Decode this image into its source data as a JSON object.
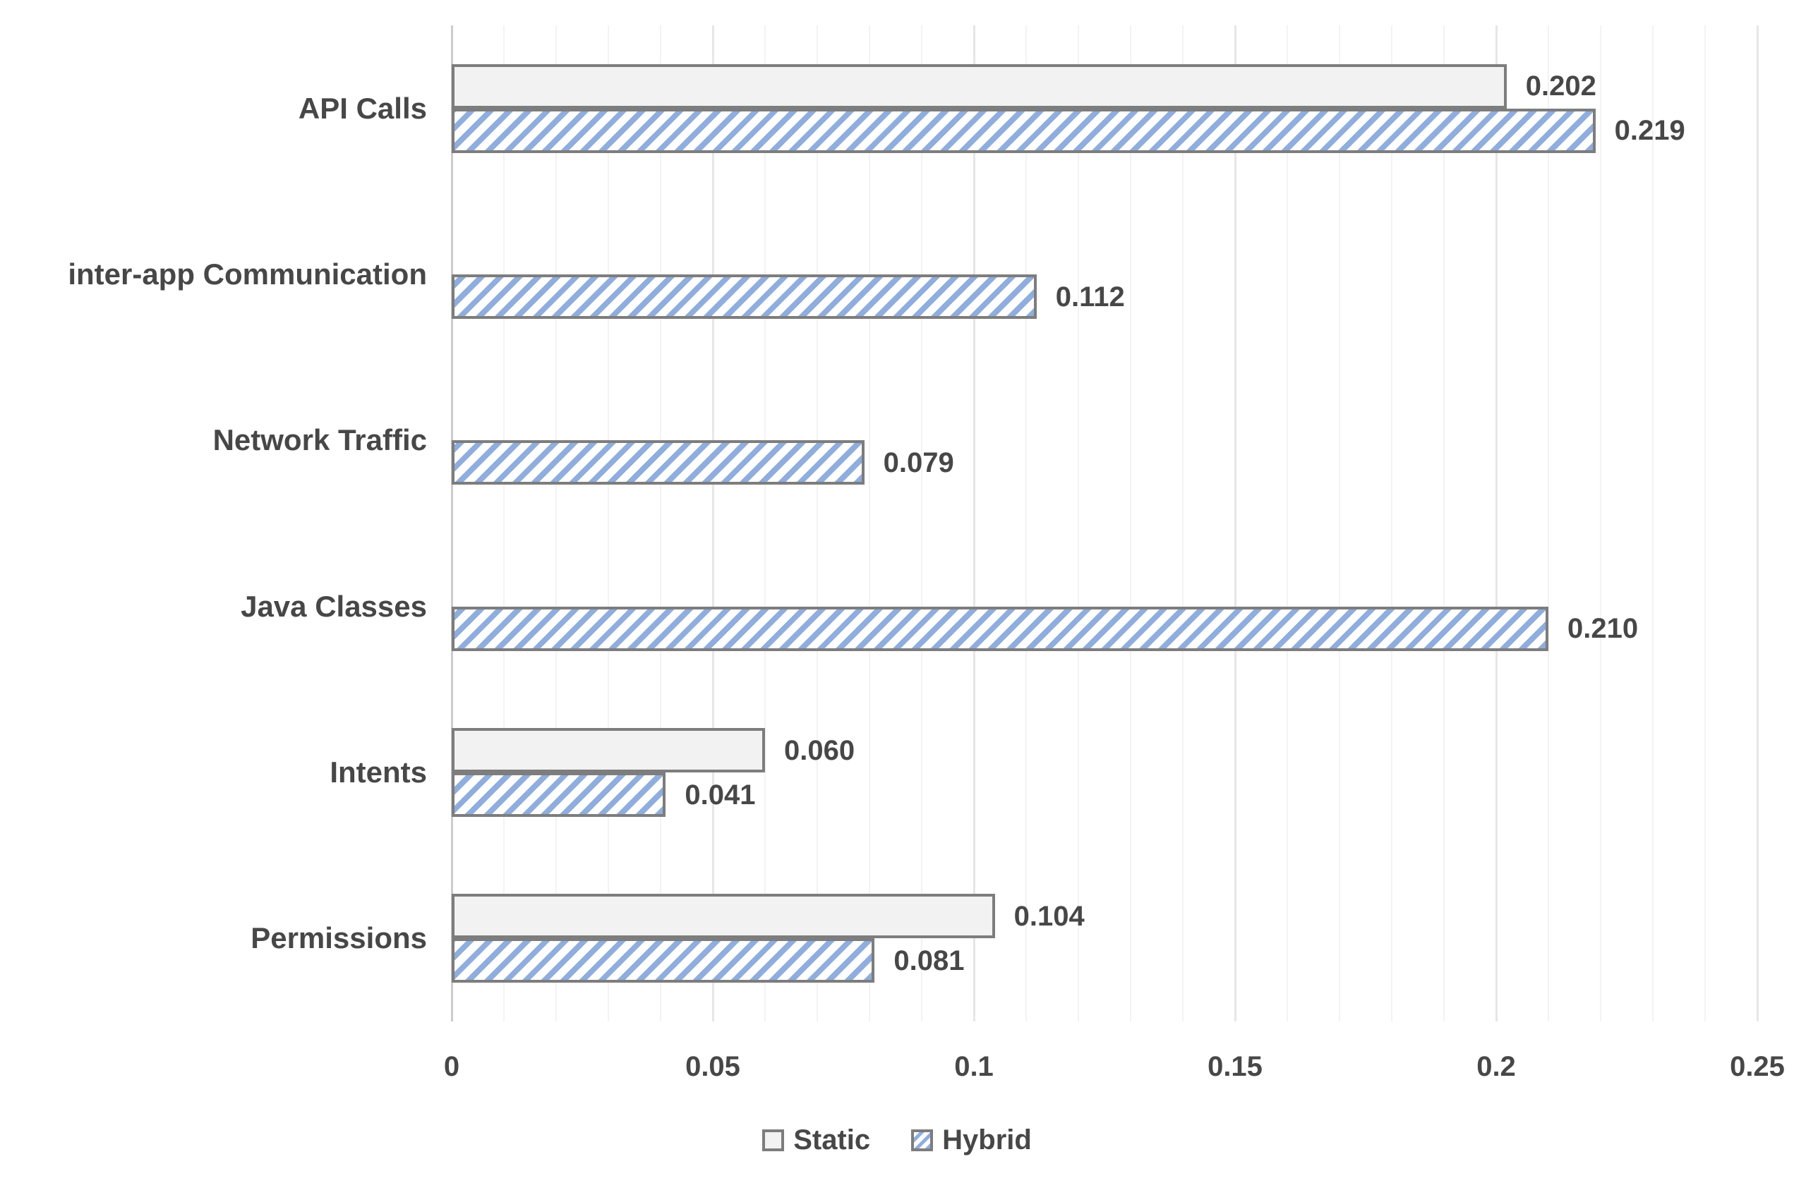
{
  "colors": {
    "static_fill": "#F2F2F2",
    "hybrid_hatch": "#8FADDD",
    "bar_border": "#7D7D7D",
    "text": "#474747",
    "gridline_minor": "#F3F3F3",
    "gridline_major": "#E6E6E6",
    "axis_line": "#CCCCCC"
  },
  "chart_data": {
    "type": "bar",
    "orientation": "horizontal",
    "title": "",
    "xlabel": "",
    "ylabel": "",
    "xlim": [
      0,
      0.25
    ],
    "x_major_unit": 0.05,
    "x_minor_unit": 0.01,
    "grid": "vertical gridlines on; minor every 0.01, major every 0.05; no bottom axis line",
    "legend_position": "bottom-center",
    "categories": [
      "API Calls",
      "inter-app Communication",
      "Network Traffic",
      "Java Classes",
      "Intents",
      "Permissions"
    ],
    "x_ticks": [
      {
        "value": 0,
        "label": "0"
      },
      {
        "value": 0.05,
        "label": "0.05"
      },
      {
        "value": 0.1,
        "label": "0.1"
      },
      {
        "value": 0.15,
        "label": "0.15"
      },
      {
        "value": 0.2,
        "label": "0.2"
      },
      {
        "value": 0.25,
        "label": "0.25"
      }
    ],
    "series": [
      {
        "name": "Static",
        "style": "solid-light-gray",
        "values": [
          0.202,
          null,
          null,
          null,
          0.06,
          0.104
        ],
        "labels": [
          "0.202",
          null,
          null,
          null,
          "0.060",
          "0.104"
        ]
      },
      {
        "name": "Hybrid",
        "style": "blue-diagonal-hatch",
        "values": [
          0.219,
          0.112,
          0.079,
          0.21,
          0.041,
          0.081
        ],
        "labels": [
          "0.219",
          "0.112",
          "0.079",
          "0.210",
          "0.041",
          "0.081"
        ]
      }
    ]
  }
}
